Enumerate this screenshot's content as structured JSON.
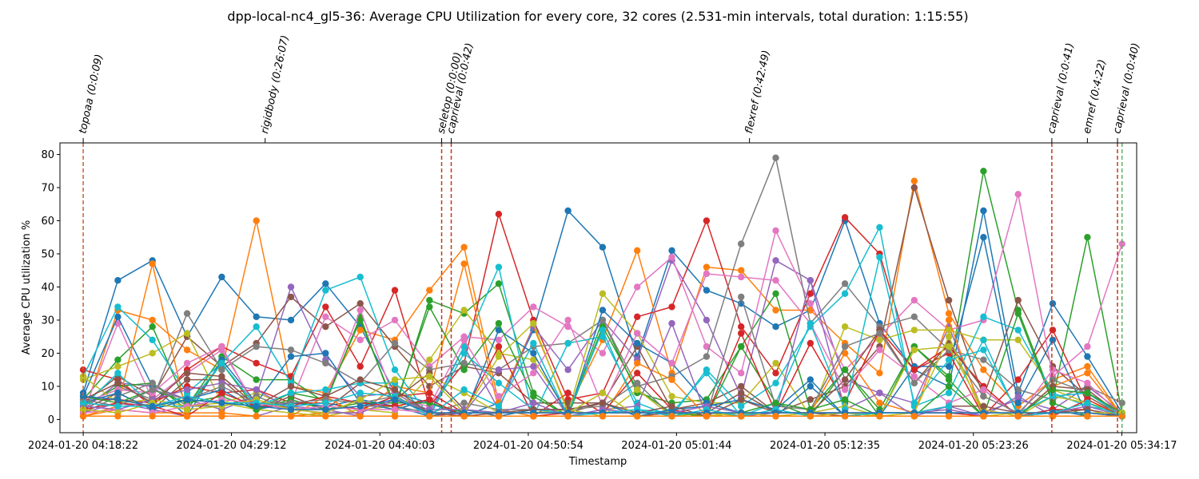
{
  "chart_data": {
    "type": "line",
    "title": "dpp-local-nc4_gl5-36: Average CPU Utilization for every core, 32 cores (2.531-min intervals, total duration: 1:15:55)",
    "xlabel": "Timestamp",
    "ylabel": "Average CPU utilization %",
    "ylim": [
      -4,
      83.5
    ],
    "y_ticks": [
      0,
      10,
      20,
      30,
      40,
      50,
      60,
      70,
      80
    ],
    "x_tick_labels": [
      "2024-01-20 04:18:22",
      "2024-01-20 04:29:12",
      "2024-01-20 04:40:03",
      "2024-01-20 04:50:54",
      "2024-01-20 05:01:44",
      "2024-01-20 05:12:35",
      "2024-01-20 05:23:26",
      "2024-01-20 05:34:17"
    ],
    "x_tick_minutes": [
      0,
      10.833,
      21.683,
      32.533,
      43.367,
      54.217,
      65.067,
      75.917
    ],
    "xlim_minutes": [
      -1.7,
      77.0
    ],
    "x_minutes": [
      0,
      2.531,
      5.062,
      7.593,
      10.124,
      12.655,
      15.186,
      17.717,
      20.248,
      22.779,
      25.31,
      27.841,
      30.372,
      32.903,
      35.434,
      37.965,
      40.496,
      43.027,
      45.558,
      48.089,
      50.62,
      53.151,
      55.682,
      58.213,
      60.744,
      63.275,
      65.806,
      68.337,
      70.868,
      73.399,
      75.93
    ],
    "grid": false,
    "legend": "none",
    "events": [
      {
        "label": "topoaa (0:0:09)",
        "minute": 0.0,
        "color": "#d0602e",
        "dashed": true
      },
      {
        "label": "rigidbody (0:26:07)",
        "minute": 13.3,
        "color": "#d0602e",
        "dashed": false
      },
      {
        "label": "seletop (0:0:00)",
        "minute": 26.2,
        "color": "#c0391b",
        "dashed": true
      },
      {
        "label": "caprieval (0:0:42)",
        "minute": 26.9,
        "color": "#c0391b",
        "dashed": true
      },
      {
        "label": "flexref (0:42:49)",
        "minute": 48.7,
        "color": "#d0602e",
        "dashed": false
      },
      {
        "label": "caprieval (0:0:41)",
        "minute": 70.8,
        "color": "#c0391b",
        "dashed": true
      },
      {
        "label": "emref (0:4:22)",
        "minute": 73.4,
        "color": "#c0391b",
        "dashed": false
      },
      {
        "label": "caprieval (0:0:40)",
        "minute": 75.6,
        "color": "#c0391b",
        "dashed": true
      }
    ],
    "end_marker": {
      "minute": 75.93,
      "color": "#58b55b"
    },
    "series": [
      {
        "color": "#1f77b4",
        "values": [
          8,
          42,
          48,
          25,
          43,
          31,
          30,
          41,
          28,
          8,
          5,
          1,
          5,
          27,
          63,
          52,
          19,
          51,
          39,
          35,
          28,
          33,
          60,
          29,
          15,
          10,
          63,
          8,
          35,
          19,
          2
        ]
      },
      {
        "color": "#ff7f0e",
        "values": [
          1,
          33,
          30,
          21,
          15,
          60,
          10,
          8,
          27,
          24,
          39,
          52,
          5,
          28,
          3,
          24,
          51,
          14,
          46,
          45,
          33,
          33,
          23,
          14,
          72,
          32,
          15,
          4,
          12,
          16,
          1
        ]
      },
      {
        "color": "#2ca02c",
        "values": [
          6,
          18,
          28,
          4,
          19,
          12,
          12,
          5,
          31,
          3,
          36,
          32,
          41,
          8,
          1,
          30,
          8,
          5,
          6,
          22,
          38,
          3,
          15,
          3,
          22,
          13,
          75,
          33,
          6,
          55,
          2
        ]
      },
      {
        "color": "#d62728",
        "values": [
          15,
          12,
          4,
          15,
          22,
          17,
          13,
          34,
          16,
          39,
          4,
          17,
          62,
          30,
          6,
          8,
          31,
          34,
          60,
          28,
          14,
          38,
          61,
          50,
          15,
          20,
          1,
          12,
          27,
          5,
          1
        ]
      },
      {
        "color": "#9467bd",
        "values": [
          3,
          11,
          10,
          6,
          3,
          7,
          40,
          18,
          7,
          8,
          2,
          22,
          3,
          28,
          15,
          30,
          18,
          48,
          30,
          7,
          48,
          42,
          12,
          8,
          5,
          28,
          2,
          6,
          3,
          10,
          2
        ]
      },
      {
        "color": "#8c564b",
        "values": [
          5,
          13,
          7,
          25,
          16,
          23,
          37,
          28,
          35,
          22,
          10,
          16,
          14,
          5,
          5,
          5,
          22,
          3,
          5,
          10,
          2,
          6,
          10,
          22,
          70,
          36,
          7,
          36,
          16,
          7,
          1
        ]
      },
      {
        "color": "#e377c2",
        "values": [
          2,
          29,
          6,
          14,
          21,
          4,
          5,
          31,
          24,
          30,
          16,
          25,
          24,
          34,
          28,
          20,
          40,
          49,
          22,
          14,
          57,
          35,
          15,
          25,
          36,
          27,
          30,
          68,
          13,
          22,
          53
        ]
      },
      {
        "color": "#7f7f7f",
        "values": [
          4,
          10,
          6,
          32,
          15,
          22,
          21,
          17,
          11,
          23,
          15,
          17,
          15,
          22,
          23,
          30,
          10,
          13,
          19,
          53,
          79,
          29,
          41,
          28,
          31,
          21,
          18,
          9,
          6,
          10,
          5
        ]
      },
      {
        "color": "#bcbd22",
        "values": [
          12,
          16,
          20,
          26,
          5,
          8,
          4,
          1,
          3,
          4,
          18,
          33,
          20,
          18,
          2,
          38,
          26,
          7,
          5,
          5,
          17,
          1,
          28,
          24,
          27,
          27,
          24,
          24,
          9,
          5,
          2
        ]
      },
      {
        "color": "#17becf",
        "values": [
          13,
          34,
          24,
          8,
          17,
          28,
          11,
          39,
          43,
          15,
          1,
          22,
          46,
          1,
          23,
          25,
          5,
          1,
          15,
          4,
          11,
          28,
          38,
          58,
          4,
          8,
          31,
          27,
          8,
          4,
          2
        ]
      },
      {
        "color": "#1f77b4",
        "values": [
          7,
          31,
          10,
          1,
          18,
          5,
          19,
          20,
          5,
          3,
          6,
          1,
          27,
          20,
          1,
          33,
          23,
          17,
          5,
          2,
          1,
          10,
          1,
          1,
          16,
          16,
          55,
          5,
          24,
          1,
          1
        ]
      },
      {
        "color": "#ff7f0e",
        "values": [
          1,
          4,
          47,
          1,
          1,
          1,
          1,
          2,
          2,
          10,
          8,
          47,
          3,
          1,
          1,
          1,
          17,
          12,
          1,
          1,
          1,
          2,
          20,
          5,
          2,
          30,
          1,
          1,
          10,
          14,
          1
        ]
      },
      {
        "color": "#2ca02c",
        "values": [
          4,
          10,
          11,
          3,
          17,
          3,
          8,
          6,
          30,
          4,
          34,
          15,
          29,
          7,
          1,
          28,
          9,
          2,
          1,
          22,
          5,
          1,
          15,
          1,
          22,
          12,
          1,
          32,
          5,
          1,
          1
        ]
      },
      {
        "color": "#d62728",
        "values": [
          6,
          6,
          5,
          10,
          8,
          9,
          5,
          5,
          3,
          7,
          8,
          2,
          22,
          1,
          8,
          2,
          14,
          3,
          1,
          26,
          2,
          23,
          5,
          27,
          15,
          22,
          10,
          1,
          1,
          6,
          1
        ]
      },
      {
        "color": "#9467bd",
        "values": [
          2,
          5,
          3,
          1,
          1,
          1,
          4,
          3,
          1,
          1,
          1,
          2,
          15,
          16,
          1,
          3,
          4,
          29,
          1,
          1,
          2,
          42,
          3,
          8,
          1,
          4,
          1,
          7,
          1,
          1,
          1
        ]
      },
      {
        "color": "#8c564b",
        "values": [
          3,
          8,
          3,
          12,
          12,
          3,
          7,
          3,
          11,
          6,
          14,
          3,
          2,
          2,
          2,
          5,
          1,
          2,
          2,
          8,
          2,
          2,
          12,
          27,
          11,
          23,
          9,
          1,
          10,
          9,
          1
        ]
      },
      {
        "color": "#e377c2",
        "values": [
          5,
          9,
          8,
          17,
          22,
          3,
          5,
          6,
          33,
          6,
          4,
          24,
          7,
          14,
          30,
          4,
          26,
          17,
          44,
          43,
          42,
          29,
          9,
          21,
          13,
          5,
          9,
          1,
          15,
          11,
          1
        ]
      },
      {
        "color": "#7f7f7f",
        "values": [
          2,
          7,
          11,
          4,
          4,
          7,
          3,
          3,
          4,
          4,
          2,
          5,
          3,
          3,
          3,
          4,
          11,
          1,
          1,
          37,
          4,
          3,
          22,
          26,
          11,
          21,
          7,
          2,
          12,
          8,
          1
        ]
      },
      {
        "color": "#bcbd22",
        "values": [
          13,
          5,
          6,
          4,
          5,
          3,
          2,
          1,
          3,
          2,
          13,
          8,
          2,
          2,
          3,
          1,
          9,
          1,
          2,
          1,
          1,
          2,
          4,
          1,
          21,
          22,
          3,
          1,
          7,
          5,
          1
        ]
      },
      {
        "color": "#17becf",
        "values": [
          4,
          14,
          4,
          4,
          17,
          4,
          8,
          9,
          11,
          11,
          1,
          20,
          11,
          3,
          2,
          27,
          3,
          2,
          14,
          1,
          5,
          29,
          3,
          49,
          5,
          18,
          21,
          2,
          7,
          8,
          1
        ]
      },
      {
        "color": "#1f77b4",
        "values": [
          5,
          8,
          3,
          6,
          9,
          3,
          5,
          4,
          6,
          4,
          1,
          3,
          1,
          3,
          3,
          5,
          1,
          3,
          4,
          6,
          3,
          12,
          1,
          1,
          1,
          1,
          1,
          1,
          3,
          1,
          1
        ]
      },
      {
        "color": "#ff7f0e",
        "values": [
          1,
          3,
          2,
          2,
          2,
          1,
          1,
          7,
          1,
          1,
          1,
          1,
          1,
          1,
          1,
          1,
          1,
          1,
          1,
          1,
          1,
          1,
          1,
          1,
          1,
          1,
          1,
          1,
          1,
          1,
          1
        ]
      },
      {
        "color": "#2ca02c",
        "values": [
          7,
          5,
          9,
          5,
          7,
          3,
          6,
          3,
          5,
          5,
          5,
          2,
          2,
          2,
          2,
          2,
          2,
          2,
          1,
          2,
          5,
          3,
          6,
          1,
          1,
          10,
          1,
          1,
          9,
          8,
          2
        ]
      },
      {
        "color": "#d62728",
        "values": [
          3,
          5,
          4,
          1,
          8,
          4,
          4,
          7,
          5,
          4,
          6,
          1,
          1,
          1,
          2,
          2,
          2,
          2,
          2,
          2,
          2,
          2,
          2,
          2,
          2,
          2,
          1,
          1,
          3,
          3,
          1
        ]
      },
      {
        "color": "#9467bd",
        "values": [
          4,
          3,
          6,
          9,
          11,
          9,
          3,
          2,
          2,
          6,
          3,
          3,
          2,
          5,
          1,
          3,
          2,
          2,
          4,
          2,
          2,
          2,
          2,
          2,
          2,
          3,
          1,
          1,
          2,
          4,
          1
        ]
      },
      {
        "color": "#8c564b",
        "values": [
          6,
          11,
          5,
          14,
          13,
          4,
          10,
          7,
          12,
          9,
          2,
          1,
          2,
          3,
          3,
          5,
          2,
          4,
          1,
          6,
          2,
          2,
          1,
          2,
          2,
          4,
          4,
          2,
          2,
          3,
          1
        ]
      },
      {
        "color": "#e377c2",
        "values": [
          2,
          3,
          2,
          4,
          6,
          5,
          3,
          4,
          3,
          3,
          2,
          2,
          2,
          2,
          2,
          2,
          2,
          2,
          2,
          2,
          2,
          2,
          2,
          2,
          2,
          2,
          2,
          2,
          2,
          2,
          1
        ]
      },
      {
        "color": "#7f7f7f",
        "values": [
          6,
          4,
          9,
          6,
          10,
          5,
          5,
          6,
          5,
          7,
          2,
          2,
          2,
          2,
          2,
          2,
          2,
          2,
          2,
          2,
          2,
          2,
          2,
          2,
          2,
          2,
          2,
          2,
          2,
          2,
          1
        ]
      },
      {
        "color": "#bcbd22",
        "values": [
          3,
          2,
          5,
          3,
          4,
          6,
          3,
          2,
          6,
          12,
          13,
          2,
          19,
          29,
          2,
          8,
          1,
          1,
          1,
          2,
          1,
          1,
          2,
          1,
          2,
          25,
          1,
          2,
          2,
          2,
          2
        ]
      },
      {
        "color": "#17becf",
        "values": [
          5,
          4,
          4,
          7,
          5,
          5,
          4,
          5,
          8,
          7,
          1,
          9,
          4,
          23,
          1,
          2,
          3,
          1,
          3,
          1,
          3,
          1,
          1,
          2,
          2,
          4,
          24,
          1,
          2,
          5,
          1
        ]
      },
      {
        "color": "#1f77b4",
        "values": [
          7,
          6,
          4,
          6,
          5,
          4,
          3,
          3,
          4,
          6,
          2,
          2,
          2,
          2,
          2,
          2,
          2,
          2,
          2,
          2,
          2,
          2,
          2,
          2,
          2,
          2,
          2,
          2,
          2,
          2,
          1
        ]
      },
      {
        "color": "#ff7f0e",
        "values": [
          1,
          1,
          1,
          1,
          1,
          1,
          1,
          1,
          1,
          1,
          1,
          1,
          1,
          1,
          1,
          1,
          1,
          1,
          1,
          1,
          1,
          1,
          1,
          1,
          1,
          1,
          1,
          1,
          1,
          1,
          1
        ]
      }
    ]
  }
}
